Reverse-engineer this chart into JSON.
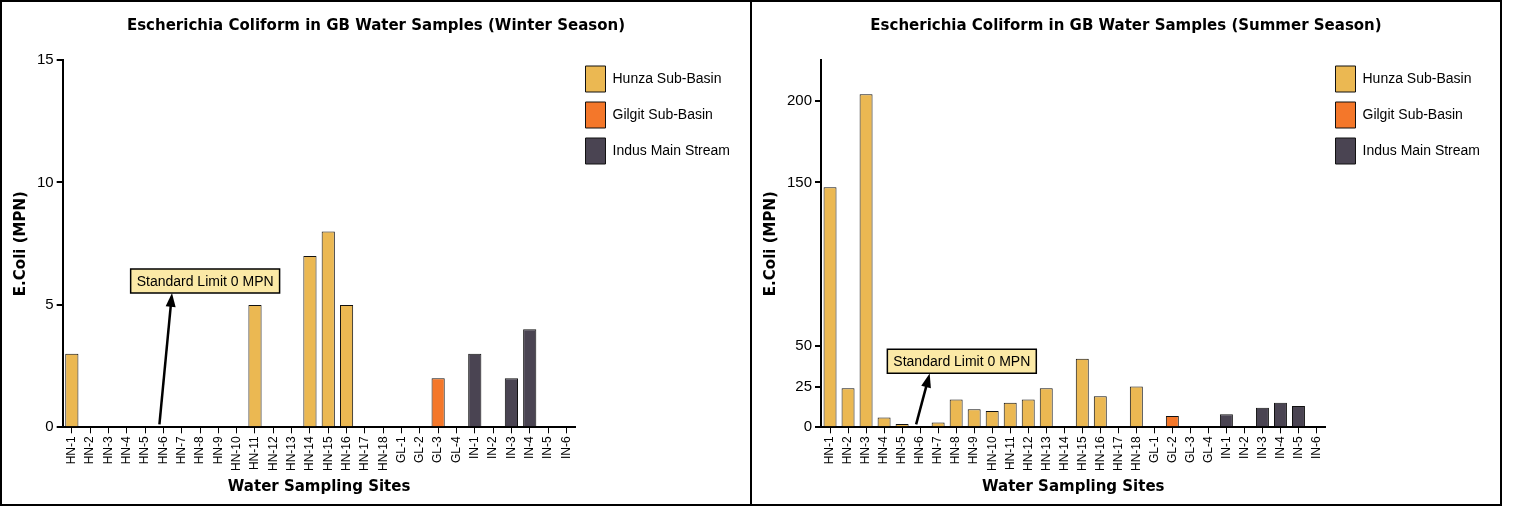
{
  "chart_data": [
    {
      "type": "bar",
      "title": "Escherichia Coliform in GB Water Samples (Winter Season)",
      "xlabel": "Water Sampling Sites",
      "ylabel": "E.Coli (MPN)",
      "categories": [
        "HN-1",
        "HN-2",
        "HN-3",
        "HN-4",
        "HN-5",
        "HN-6",
        "HN-7",
        "HN-8",
        "HN-9",
        "HN-10",
        "HN-11",
        "HN-12",
        "HN-13",
        "HN-14",
        "HN-15",
        "HN-16",
        "HN-17",
        "HN-18",
        "GL-1",
        "GL-2",
        "GL-3",
        "GL-4",
        "IN-1",
        "IN-2",
        "IN-3",
        "IN-4",
        "IN-5",
        "IN-6"
      ],
      "series": [
        {
          "name": "Hunza Sub-Basin",
          "color": "#ebb852",
          "values": [
            3,
            0,
            0,
            0,
            0,
            0,
            0,
            0,
            0,
            0,
            5,
            0,
            0,
            7,
            8,
            5,
            0,
            0,
            null,
            null,
            null,
            null,
            null,
            null,
            null,
            null,
            null,
            null
          ]
        },
        {
          "name": "Gilgit Sub-Basin",
          "color": "#f4772a",
          "values": [
            null,
            null,
            null,
            null,
            null,
            null,
            null,
            null,
            null,
            null,
            null,
            null,
            null,
            null,
            null,
            null,
            null,
            null,
            0,
            0,
            2,
            0,
            null,
            null,
            null,
            null,
            null,
            null
          ]
        },
        {
          "name": "Indus Main Stream",
          "color": "#4a4452",
          "values": [
            null,
            null,
            null,
            null,
            null,
            null,
            null,
            null,
            null,
            null,
            null,
            null,
            null,
            null,
            null,
            null,
            null,
            null,
            null,
            null,
            null,
            null,
            3,
            0,
            2,
            4,
            0,
            0
          ]
        }
      ],
      "ylim": [
        0,
        15
      ],
      "yticks": [
        0,
        5,
        10,
        15
      ],
      "grid": false,
      "legend": "top right",
      "annotations": [
        {
          "text": "Standard Limit 0 MPN",
          "x": "HN-6",
          "y": 0
        }
      ]
    },
    {
      "type": "bar",
      "title": "Escherichia Coliform in GB Water Samples (Summer Season)",
      "xlabel": "Water Sampling Sites",
      "ylabel": "E.Coli (MPN)",
      "categories": [
        "HN-1",
        "HN-2",
        "HN-3",
        "HN-4",
        "HN-5",
        "HN-6",
        "HN-7",
        "HN-8",
        "HN-9",
        "HN-10",
        "HN-11",
        "HN-12",
        "HN-13",
        "HN-14",
        "HN-15",
        "HN-16",
        "HN-17",
        "HN-18",
        "GL-1",
        "GL-2",
        "GL-3",
        "GL-4",
        "IN-1",
        "IN-2",
        "IN-3",
        "IN-4",
        "IN-5",
        "IN-6"
      ],
      "series": [
        {
          "name": "Hunza Sub-Basin",
          "color": "#ebb852",
          "values": [
            147,
            24,
            204,
            6,
            2,
            0,
            3,
            17,
            11,
            10,
            15,
            17,
            24,
            0,
            42,
            19,
            0,
            25,
            null,
            null,
            null,
            null,
            null,
            null,
            null,
            null,
            null,
            null
          ]
        },
        {
          "name": "Gilgit Sub-Basin",
          "color": "#f4772a",
          "values": [
            null,
            null,
            null,
            null,
            null,
            null,
            null,
            null,
            null,
            null,
            null,
            null,
            null,
            null,
            null,
            null,
            null,
            null,
            0,
            7,
            0,
            0,
            null,
            null,
            null,
            null,
            null,
            null
          ]
        },
        {
          "name": "Indus Main Stream",
          "color": "#4a4452",
          "values": [
            null,
            null,
            null,
            null,
            null,
            null,
            null,
            null,
            null,
            null,
            null,
            null,
            null,
            null,
            null,
            null,
            null,
            null,
            null,
            null,
            null,
            null,
            8,
            0,
            12,
            15,
            13,
            0
          ]
        }
      ],
      "ylim": [
        0,
        225
      ],
      "yticks": [
        0,
        25,
        50,
        150,
        200
      ],
      "grid": false,
      "legend": "top right",
      "annotations": [
        {
          "text": "Standard Limit 0 MPN",
          "x": "HN-6",
          "y": 0
        }
      ]
    }
  ]
}
